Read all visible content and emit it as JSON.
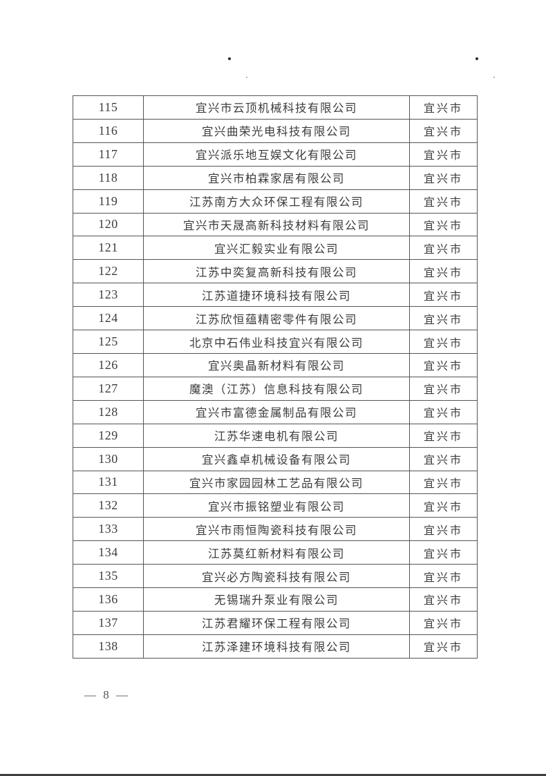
{
  "colors": {
    "paper": "#ffffff",
    "table_border": "#545454",
    "text": "#3c3c3c"
  },
  "footer": {
    "page_number": "— 8 —"
  },
  "table": {
    "rows": [
      {
        "no": "115",
        "company": "宜兴市云顶机械科技有限公司",
        "city": "宜兴市"
      },
      {
        "no": "116",
        "company": "宜兴曲荣光电科技有限公司",
        "city": "宜兴市"
      },
      {
        "no": "117",
        "company": "宜兴派乐地互娱文化有限公司",
        "city": "宜兴市"
      },
      {
        "no": "118",
        "company": "宜兴市柏霖家居有限公司",
        "city": "宜兴市"
      },
      {
        "no": "119",
        "company": "江苏南方大众环保工程有限公司",
        "city": "宜兴市"
      },
      {
        "no": "120",
        "company": "宜兴市天晟高新科技材料有限公司",
        "city": "宜兴市"
      },
      {
        "no": "121",
        "company": "宜兴汇毅实业有限公司",
        "city": "宜兴市"
      },
      {
        "no": "122",
        "company": "江苏中奕复高新科技有限公司",
        "city": "宜兴市"
      },
      {
        "no": "123",
        "company": "江苏道捷环境科技有限公司",
        "city": "宜兴市"
      },
      {
        "no": "124",
        "company": "江苏欣恒蕴精密零件有限公司",
        "city": "宜兴市"
      },
      {
        "no": "125",
        "company": "北京中石伟业科技宜兴有限公司",
        "city": "宜兴市"
      },
      {
        "no": "126",
        "company": "宜兴奥晶新材料有限公司",
        "city": "宜兴市"
      },
      {
        "no": "127",
        "company": "魔澳（江苏）信息科技有限公司",
        "city": "宜兴市"
      },
      {
        "no": "128",
        "company": "宜兴市富德金属制品有限公司",
        "city": "宜兴市"
      },
      {
        "no": "129",
        "company": "江苏华速电机有限公司",
        "city": "宜兴市"
      },
      {
        "no": "130",
        "company": "宜兴鑫卓机械设备有限公司",
        "city": "宜兴市"
      },
      {
        "no": "131",
        "company": "宜兴市家园园林工艺品有限公司",
        "city": "宜兴市"
      },
      {
        "no": "132",
        "company": "宜兴市振铭塑业有限公司",
        "city": "宜兴市"
      },
      {
        "no": "133",
        "company": "宜兴市雨恒陶瓷科技有限公司",
        "city": "宜兴市"
      },
      {
        "no": "134",
        "company": "江苏莫红新材料有限公司",
        "city": "宜兴市"
      },
      {
        "no": "135",
        "company": "宜兴必方陶瓷科技有限公司",
        "city": "宜兴市"
      },
      {
        "no": "136",
        "company": "无锡瑞升泵业有限公司",
        "city": "宜兴市"
      },
      {
        "no": "137",
        "company": "江苏君耀环保工程有限公司",
        "city": "宜兴市"
      },
      {
        "no": "138",
        "company": "江苏泽建环境科技有限公司",
        "city": "宜兴市"
      }
    ]
  }
}
